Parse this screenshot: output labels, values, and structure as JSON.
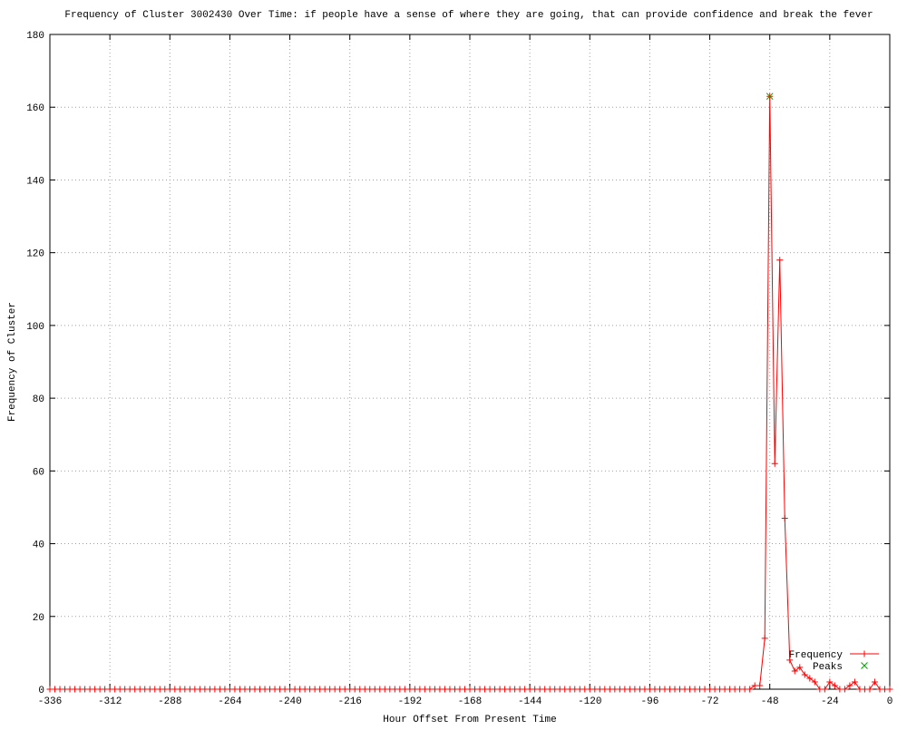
{
  "chart_data": {
    "type": "line",
    "title": "Frequency of Cluster 3002430 Over Time: if people have a sense of where they are going, that can provide confidence and break the fever",
    "xlabel": "Hour Offset From Present Time",
    "ylabel": "Frequency of Cluster",
    "xlim": [
      -336,
      0
    ],
    "ylim": [
      0,
      180
    ],
    "xticks": [
      -336,
      -312,
      -288,
      -264,
      -240,
      -216,
      -192,
      -168,
      -144,
      -120,
      -96,
      -72,
      -48,
      -24,
      0
    ],
    "yticks": [
      0,
      20,
      40,
      60,
      80,
      100,
      120,
      140,
      160,
      180
    ],
    "grid": true,
    "legend": "bottom right",
    "series": [
      {
        "name": "Frequency",
        "color": "#ff0000",
        "marker": "plus",
        "x": [
          -336,
          -334,
          -332,
          -330,
          -328,
          -326,
          -324,
          -322,
          -320,
          -318,
          -316,
          -314,
          -312,
          -310,
          -308,
          -306,
          -304,
          -302,
          -300,
          -298,
          -296,
          -294,
          -292,
          -290,
          -288,
          -286,
          -284,
          -282,
          -280,
          -278,
          -276,
          -274,
          -272,
          -270,
          -268,
          -266,
          -264,
          -262,
          -260,
          -258,
          -256,
          -254,
          -252,
          -250,
          -248,
          -246,
          -244,
          -242,
          -240,
          -238,
          -236,
          -234,
          -232,
          -230,
          -228,
          -226,
          -224,
          -222,
          -220,
          -218,
          -216,
          -214,
          -212,
          -210,
          -208,
          -206,
          -204,
          -202,
          -200,
          -198,
          -196,
          -194,
          -192,
          -190,
          -188,
          -186,
          -184,
          -182,
          -180,
          -178,
          -176,
          -174,
          -172,
          -170,
          -168,
          -166,
          -164,
          -162,
          -160,
          -158,
          -156,
          -154,
          -152,
          -150,
          -148,
          -146,
          -144,
          -142,
          -140,
          -138,
          -136,
          -134,
          -132,
          -130,
          -128,
          -126,
          -124,
          -122,
          -120,
          -118,
          -116,
          -114,
          -112,
          -110,
          -108,
          -106,
          -104,
          -102,
          -100,
          -98,
          -96,
          -94,
          -92,
          -90,
          -88,
          -86,
          -84,
          -82,
          -80,
          -78,
          -76,
          -74,
          -72,
          -70,
          -68,
          -66,
          -64,
          -62,
          -60,
          -58,
          -56,
          -54,
          -52,
          -50,
          -48,
          -46,
          -44,
          -42,
          -40,
          -38,
          -36,
          -34,
          -32,
          -30,
          -28,
          -26,
          -24,
          -22,
          -20,
          -18,
          -16,
          -14,
          -12,
          -10,
          -8,
          -6,
          -4,
          -2,
          0
        ],
        "values": [
          0,
          0,
          0,
          0,
          0,
          0,
          0,
          0,
          0,
          0,
          0,
          0,
          0,
          0,
          0,
          0,
          0,
          0,
          0,
          0,
          0,
          0,
          0,
          0,
          0,
          0,
          0,
          0,
          0,
          0,
          0,
          0,
          0,
          0,
          0,
          0,
          0,
          0,
          0,
          0,
          0,
          0,
          0,
          0,
          0,
          0,
          0,
          0,
          0,
          0,
          0,
          0,
          0,
          0,
          0,
          0,
          0,
          0,
          0,
          0,
          0,
          0,
          0,
          0,
          0,
          0,
          0,
          0,
          0,
          0,
          0,
          0,
          0,
          0,
          0,
          0,
          0,
          0,
          0,
          0,
          0,
          0,
          0,
          0,
          0,
          0,
          0,
          0,
          0,
          0,
          0,
          0,
          0,
          0,
          0,
          0,
          0,
          0,
          0,
          0,
          0,
          0,
          0,
          0,
          0,
          0,
          0,
          0,
          0,
          0,
          0,
          0,
          0,
          0,
          0,
          0,
          0,
          0,
          0,
          0,
          0,
          0,
          0,
          0,
          0,
          0,
          0,
          0,
          0,
          0,
          0,
          0,
          0,
          0,
          0,
          0,
          0,
          0,
          0,
          0,
          0,
          1,
          1,
          14,
          163,
          62,
          118,
          47,
          8,
          5,
          6,
          4,
          3,
          2,
          0,
          0,
          2,
          1,
          0,
          0,
          1,
          2,
          0,
          0,
          0,
          2,
          0,
          0,
          0
        ]
      },
      {
        "name": "Peaks",
        "color": "#00a000",
        "marker": "cross",
        "line": false,
        "x": [
          -48
        ],
        "values": [
          163
        ]
      }
    ]
  }
}
